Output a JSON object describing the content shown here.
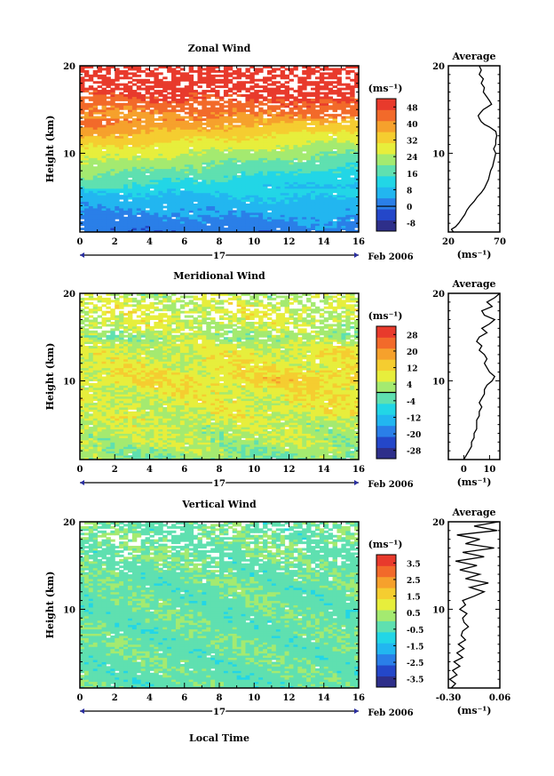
{
  "figure": {
    "date_label": "Feb 2006",
    "day_label": "17",
    "xlabel": "Local Time",
    "unit_label": "(ms⁻¹)",
    "average_title": "Average",
    "ylabel": "Height (km)"
  },
  "chart_data": [
    {
      "type": "heatmap",
      "title": "Zonal Wind",
      "xlabel": "",
      "ylabel": "Height (km)",
      "xlim": [
        0,
        16
      ],
      "ylim": [
        1,
        20
      ],
      "x_ticks": [
        0,
        2,
        4,
        6,
        8,
        10,
        12,
        14,
        16
      ],
      "y_ticks": [
        10,
        20
      ],
      "colorbar": {
        "unit": "(ms⁻¹)",
        "ticks": [
          -8,
          0,
          8,
          16,
          24,
          32,
          40,
          48
        ],
        "range": [
          -12,
          52
        ],
        "zero_contour": 0
      },
      "profile_samples": [
        [
          1,
          0
        ],
        [
          4,
          6
        ],
        [
          7,
          14
        ],
        [
          10,
          24
        ],
        [
          12,
          32
        ],
        [
          14,
          40
        ],
        [
          16,
          46
        ],
        [
          18,
          52
        ],
        [
          20,
          52
        ]
      ],
      "time_trend": 0.55,
      "noise": 0.2,
      "gap_start_height": 13,
      "gap_density": 0.35,
      "average": {
        "title": "Average",
        "xlabel": "(ms⁻¹)",
        "xlim": [
          20,
          70
        ],
        "x_ticks": [
          20,
          70
        ],
        "y_ticks": [
          10,
          20
        ],
        "height": [
          1.0,
          1.3,
          1.6,
          2.0,
          2.5,
          3.0,
          3.5,
          4.0,
          4.5,
          5.0,
          5.5,
          6.0,
          6.5,
          7.0,
          7.5,
          8.0,
          8.5,
          9.0,
          9.5,
          10.0,
          10.5,
          11.0,
          11.5,
          12.0,
          12.5,
          13.0,
          13.3,
          13.6,
          14.0,
          14.3,
          14.6,
          15.0,
          15.3,
          15.6,
          16.0,
          16.5,
          17.0,
          17.5,
          18.0,
          18.5,
          19.0,
          19.5,
          20.0
        ],
        "value": [
          25,
          23,
          27,
          30,
          33,
          36,
          38,
          41,
          45,
          48,
          52,
          55,
          57,
          59,
          60,
          61,
          63,
          64,
          65,
          66,
          64,
          66,
          66,
          67,
          66,
          60,
          55,
          52,
          50,
          49,
          51,
          54,
          58,
          62,
          60,
          57,
          54,
          55,
          52,
          54,
          50,
          52,
          50
        ]
      }
    },
    {
      "type": "heatmap",
      "title": "Meridional Wind",
      "xlabel": "",
      "ylabel": "Height (km)",
      "xlim": [
        0,
        16
      ],
      "ylim": [
        1,
        20
      ],
      "x_ticks": [
        0,
        2,
        4,
        6,
        8,
        10,
        12,
        14,
        16
      ],
      "y_ticks": [
        10,
        20
      ],
      "colorbar": {
        "unit": "(ms⁻¹)",
        "ticks": [
          -28,
          -20,
          -12,
          -4,
          4,
          12,
          20,
          28
        ],
        "range": [
          -32,
          32
        ],
        "zero_contour": 0
      },
      "profile_samples": [
        [
          1,
          0
        ],
        [
          3,
          4
        ],
        [
          6,
          6
        ],
        [
          9,
          8
        ],
        [
          10,
          11
        ],
        [
          12,
          8
        ],
        [
          14,
          6
        ],
        [
          15,
          2
        ],
        [
          16,
          5
        ],
        [
          18,
          7
        ],
        [
          20,
          4
        ]
      ],
      "time_trend": -0.2,
      "noise": 0.45,
      "gap_start_height": 14,
      "gap_density": 0.4,
      "average": {
        "title": "Average",
        "xlabel": "(ms⁻¹)",
        "xlim": [
          -6,
          14
        ],
        "x_ticks": [
          0,
          10
        ],
        "y_ticks": [
          10,
          20
        ],
        "height": [
          1.0,
          1.5,
          2.0,
          2.5,
          3.0,
          3.5,
          4.0,
          4.5,
          5.0,
          5.5,
          6.0,
          6.5,
          7.0,
          7.5,
          8.0,
          8.5,
          9.0,
          9.5,
          10.0,
          10.5,
          11.0,
          11.5,
          12.0,
          12.5,
          13.0,
          13.5,
          14.0,
          14.5,
          15.0,
          15.5,
          16.0,
          16.5,
          17.0,
          17.5,
          18.0,
          18.5,
          19.0,
          19.5,
          20.0
        ],
        "value": [
          0,
          1,
          2,
          3,
          3,
          4,
          4,
          5,
          5,
          5,
          6,
          6,
          7,
          6,
          7,
          8,
          8,
          9,
          11,
          12,
          10,
          9,
          8,
          9,
          8,
          6,
          7,
          5,
          6,
          9,
          7,
          10,
          12,
          8,
          7,
          11,
          9,
          12,
          14
        ]
      }
    },
    {
      "type": "heatmap",
      "title": "Vertical Wind",
      "xlabel": "Local Time",
      "ylabel": "Height (km)",
      "xlim": [
        0,
        16
      ],
      "ylim": [
        1,
        20
      ],
      "x_ticks": [
        0,
        2,
        4,
        6,
        8,
        10,
        12,
        14,
        16
      ],
      "y_ticks": [
        10,
        20
      ],
      "colorbar": {
        "unit": "(ms⁻¹)",
        "ticks": [
          -3.5,
          -2.5,
          -1.5,
          -0.5,
          0.5,
          1.5,
          2.5,
          3.5
        ],
        "range": [
          -4,
          4
        ],
        "zero_contour": null
      },
      "profile_samples": [
        [
          1,
          -0.3
        ],
        [
          5,
          -0.2
        ],
        [
          10,
          -0.25
        ],
        [
          14,
          -0.2
        ],
        [
          17,
          -0.1
        ],
        [
          20,
          -0.2
        ]
      ],
      "time_trend": 0,
      "noise": 0.35,
      "gap_start_height": 14,
      "gap_density": 0.3,
      "average": {
        "title": "Average",
        "xlabel": "(ms⁻¹)",
        "xlim": [
          -0.3,
          0.06
        ],
        "x_ticks": [
          -0.3,
          0.06
        ],
        "x_tick_labels": [
          "-0.30",
          "0.06"
        ],
        "y_ticks": [
          10,
          20
        ],
        "height": [
          1.0,
          1.5,
          2.0,
          2.5,
          3.0,
          3.5,
          4.0,
          4.5,
          5.0,
          5.5,
          6.0,
          6.5,
          7.0,
          7.5,
          8.0,
          8.5,
          9.0,
          9.5,
          10.0,
          10.5,
          11.0,
          11.5,
          12.0,
          12.5,
          13.0,
          13.5,
          14.0,
          14.5,
          15.0,
          15.5,
          16.0,
          16.5,
          17.0,
          17.5,
          18.0,
          18.5,
          19.0,
          19.5,
          20.0
        ],
        "value": [
          -0.28,
          -0.25,
          -0.29,
          -0.24,
          -0.27,
          -0.22,
          -0.26,
          -0.2,
          -0.24,
          -0.19,
          -0.23,
          -0.18,
          -0.21,
          -0.2,
          -0.16,
          -0.19,
          -0.2,
          -0.17,
          -0.22,
          -0.18,
          -0.2,
          -0.12,
          -0.05,
          -0.15,
          -0.02,
          -0.18,
          -0.08,
          -0.22,
          -0.1,
          -0.25,
          -0.05,
          -0.2,
          0.02,
          -0.18,
          -0.08,
          -0.24,
          0.04,
          -0.12,
          0.05
        ]
      }
    }
  ]
}
